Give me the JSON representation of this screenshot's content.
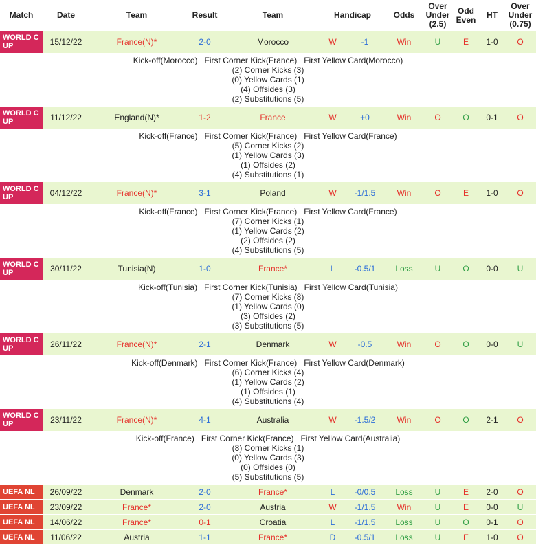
{
  "colors": {
    "red": "#e5312b",
    "green": "#2f9e44",
    "blue": "#2b6dd8",
    "black": "#222222",
    "wc_badge": "#d4275a",
    "uefa_badge": "#e04433",
    "row_bg": "#e9f6d0"
  },
  "header": {
    "match": "Match",
    "date": "Date",
    "team1": "Team",
    "result": "Result",
    "team2": "Team",
    "handicap": "Handicap",
    "odds": "Odds",
    "over_under_25": "Over Under (2.5)",
    "odd_even": "Odd Even",
    "ht": "HT",
    "over_under_075": "Over Under (0.75)"
  },
  "rows": [
    {
      "competition_lines": [
        "WORLD C",
        "UP"
      ],
      "badge_color": "wc_badge",
      "compact": false,
      "date": "15/12/22",
      "home": {
        "text": "France(N)*",
        "color": "red"
      },
      "result": {
        "text": "2-0",
        "color": "blue"
      },
      "away": {
        "text": "Morocco",
        "color": "black"
      },
      "wl": {
        "text": "W",
        "color": "red"
      },
      "handicap": {
        "text": "-1",
        "color": "blue"
      },
      "odds": {
        "text": "Win",
        "color": "red"
      },
      "ou25": {
        "text": "U",
        "color": "green"
      },
      "oe": {
        "text": "E",
        "color": "red"
      },
      "ht": {
        "text": "1-0",
        "color": "black"
      },
      "ou075": {
        "text": "O",
        "color": "red"
      },
      "detail": {
        "kickoff": "Kick-off(Morocco)",
        "first_corner": "First Corner Kick(France)",
        "first_yellow": "First Yellow Card(Morocco)",
        "stats": [
          "(2) Corner Kicks (3)",
          "(0) Yellow Cards (1)",
          "(4) Offsides (3)",
          "(2) Substitutions (5)"
        ]
      }
    },
    {
      "competition_lines": [
        "WORLD C",
        "UP"
      ],
      "badge_color": "wc_badge",
      "compact": false,
      "date": "11/12/22",
      "home": {
        "text": "England(N)*",
        "color": "black"
      },
      "result": {
        "text": "1-2",
        "color": "red"
      },
      "away": {
        "text": "France",
        "color": "red"
      },
      "wl": {
        "text": "W",
        "color": "red"
      },
      "handicap": {
        "text": "+0",
        "color": "blue"
      },
      "odds": {
        "text": "Win",
        "color": "red"
      },
      "ou25": {
        "text": "O",
        "color": "red"
      },
      "oe": {
        "text": "O",
        "color": "green"
      },
      "ht": {
        "text": "0-1",
        "color": "black"
      },
      "ou075": {
        "text": "O",
        "color": "red"
      },
      "detail": {
        "kickoff": "Kick-off(France)",
        "first_corner": "First Corner Kick(France)",
        "first_yellow": "First Yellow Card(France)",
        "stats": [
          "(5) Corner Kicks (2)",
          "(1) Yellow Cards (3)",
          "(1) Offsides (2)",
          "(4) Substitutions (1)"
        ]
      }
    },
    {
      "competition_lines": [
        "WORLD C",
        "UP"
      ],
      "badge_color": "wc_badge",
      "compact": false,
      "date": "04/12/22",
      "home": {
        "text": "France(N)*",
        "color": "red"
      },
      "result": {
        "text": "3-1",
        "color": "blue"
      },
      "away": {
        "text": "Poland",
        "color": "black"
      },
      "wl": {
        "text": "W",
        "color": "red"
      },
      "handicap": {
        "text": "-1/1.5",
        "color": "blue"
      },
      "odds": {
        "text": "Win",
        "color": "red"
      },
      "ou25": {
        "text": "O",
        "color": "red"
      },
      "oe": {
        "text": "E",
        "color": "red"
      },
      "ht": {
        "text": "1-0",
        "color": "black"
      },
      "ou075": {
        "text": "O",
        "color": "red"
      },
      "detail": {
        "kickoff": "Kick-off(France)",
        "first_corner": "First Corner Kick(France)",
        "first_yellow": "First Yellow Card(France)",
        "stats": [
          "(7) Corner Kicks (1)",
          "(1) Yellow Cards (2)",
          "(2) Offsides (2)",
          "(4) Substitutions (5)"
        ]
      }
    },
    {
      "competition_lines": [
        "WORLD C",
        "UP"
      ],
      "badge_color": "wc_badge",
      "compact": false,
      "date": "30/11/22",
      "home": {
        "text": "Tunisia(N)",
        "color": "black"
      },
      "result": {
        "text": "1-0",
        "color": "blue"
      },
      "away": {
        "text": "France*",
        "color": "red"
      },
      "wl": {
        "text": "L",
        "color": "blue"
      },
      "handicap": {
        "text": "-0.5/1",
        "color": "blue"
      },
      "odds": {
        "text": "Loss",
        "color": "green"
      },
      "ou25": {
        "text": "U",
        "color": "green"
      },
      "oe": {
        "text": "O",
        "color": "green"
      },
      "ht": {
        "text": "0-0",
        "color": "black"
      },
      "ou075": {
        "text": "U",
        "color": "green"
      },
      "detail": {
        "kickoff": "Kick-off(Tunisia)",
        "first_corner": "First Corner Kick(Tunisia)",
        "first_yellow": "First Yellow Card(Tunisia)",
        "stats": [
          "(7) Corner Kicks (8)",
          "(1) Yellow Cards (0)",
          "(3) Offsides (2)",
          "(3) Substitutions (5)"
        ]
      }
    },
    {
      "competition_lines": [
        "WORLD C",
        "UP"
      ],
      "badge_color": "wc_badge",
      "compact": false,
      "date": "26/11/22",
      "home": {
        "text": "France(N)*",
        "color": "red"
      },
      "result": {
        "text": "2-1",
        "color": "blue"
      },
      "away": {
        "text": "Denmark",
        "color": "black"
      },
      "wl": {
        "text": "W",
        "color": "red"
      },
      "handicap": {
        "text": "-0.5",
        "color": "blue"
      },
      "odds": {
        "text": "Win",
        "color": "red"
      },
      "ou25": {
        "text": "O",
        "color": "red"
      },
      "oe": {
        "text": "O",
        "color": "green"
      },
      "ht": {
        "text": "0-0",
        "color": "black"
      },
      "ou075": {
        "text": "U",
        "color": "green"
      },
      "detail": {
        "kickoff": "Kick-off(Denmark)",
        "first_corner": "First Corner Kick(France)",
        "first_yellow": "First Yellow Card(Denmark)",
        "stats": [
          "(6) Corner Kicks (4)",
          "(1) Yellow Cards (2)",
          "(1) Offsides (1)",
          "(4) Substitutions (4)"
        ]
      }
    },
    {
      "competition_lines": [
        "WORLD C",
        "UP"
      ],
      "badge_color": "wc_badge",
      "compact": false,
      "date": "23/11/22",
      "home": {
        "text": "France(N)*",
        "color": "red"
      },
      "result": {
        "text": "4-1",
        "color": "blue"
      },
      "away": {
        "text": "Australia",
        "color": "black"
      },
      "wl": {
        "text": "W",
        "color": "red"
      },
      "handicap": {
        "text": "-1.5/2",
        "color": "blue"
      },
      "odds": {
        "text": "Win",
        "color": "red"
      },
      "ou25": {
        "text": "O",
        "color": "red"
      },
      "oe": {
        "text": "O",
        "color": "green"
      },
      "ht": {
        "text": "2-1",
        "color": "black"
      },
      "ou075": {
        "text": "O",
        "color": "red"
      },
      "detail": {
        "kickoff": "Kick-off(France)",
        "first_corner": "First Corner Kick(France)",
        "first_yellow": "First Yellow Card(Australia)",
        "stats": [
          "(8) Corner Kicks (1)",
          "(0) Yellow Cards (3)",
          "(0) Offsides (0)",
          "(5) Substitutions (5)"
        ]
      }
    },
    {
      "competition_lines": [
        "UEFA NL"
      ],
      "badge_color": "uefa_badge",
      "compact": true,
      "date": "26/09/22",
      "home": {
        "text": "Denmark",
        "color": "black"
      },
      "result": {
        "text": "2-0",
        "color": "blue"
      },
      "away": {
        "text": "France*",
        "color": "red"
      },
      "wl": {
        "text": "L",
        "color": "blue"
      },
      "handicap": {
        "text": "-0/0.5",
        "color": "blue"
      },
      "odds": {
        "text": "Loss",
        "color": "green"
      },
      "ou25": {
        "text": "U",
        "color": "green"
      },
      "oe": {
        "text": "E",
        "color": "red"
      },
      "ht": {
        "text": "2-0",
        "color": "black"
      },
      "ou075": {
        "text": "O",
        "color": "red"
      }
    },
    {
      "competition_lines": [
        "UEFA NL"
      ],
      "badge_color": "uefa_badge",
      "compact": true,
      "date": "23/09/22",
      "home": {
        "text": "France*",
        "color": "red"
      },
      "result": {
        "text": "2-0",
        "color": "blue"
      },
      "away": {
        "text": "Austria",
        "color": "black"
      },
      "wl": {
        "text": "W",
        "color": "red"
      },
      "handicap": {
        "text": "-1/1.5",
        "color": "blue"
      },
      "odds": {
        "text": "Win",
        "color": "red"
      },
      "ou25": {
        "text": "U",
        "color": "green"
      },
      "oe": {
        "text": "E",
        "color": "red"
      },
      "ht": {
        "text": "0-0",
        "color": "black"
      },
      "ou075": {
        "text": "U",
        "color": "green"
      }
    },
    {
      "competition_lines": [
        "UEFA NL"
      ],
      "badge_color": "uefa_badge",
      "compact": true,
      "date": "14/06/22",
      "home": {
        "text": "France*",
        "color": "red"
      },
      "result": {
        "text": "0-1",
        "color": "red"
      },
      "away": {
        "text": "Croatia",
        "color": "black"
      },
      "wl": {
        "text": "L",
        "color": "blue"
      },
      "handicap": {
        "text": "-1/1.5",
        "color": "blue"
      },
      "odds": {
        "text": "Loss",
        "color": "green"
      },
      "ou25": {
        "text": "U",
        "color": "green"
      },
      "oe": {
        "text": "O",
        "color": "green"
      },
      "ht": {
        "text": "0-1",
        "color": "black"
      },
      "ou075": {
        "text": "O",
        "color": "red"
      }
    },
    {
      "competition_lines": [
        "UEFA NL"
      ],
      "badge_color": "uefa_badge",
      "compact": true,
      "date": "11/06/22",
      "home": {
        "text": "Austria",
        "color": "black"
      },
      "result": {
        "text": "1-1",
        "color": "blue"
      },
      "away": {
        "text": "France*",
        "color": "red"
      },
      "wl": {
        "text": "D",
        "color": "blue"
      },
      "handicap": {
        "text": "-0.5/1",
        "color": "blue"
      },
      "odds": {
        "text": "Loss",
        "color": "green"
      },
      "ou25": {
        "text": "U",
        "color": "green"
      },
      "oe": {
        "text": "E",
        "color": "red"
      },
      "ht": {
        "text": "1-0",
        "color": "black"
      },
      "ou075": {
        "text": "O",
        "color": "red"
      }
    }
  ]
}
